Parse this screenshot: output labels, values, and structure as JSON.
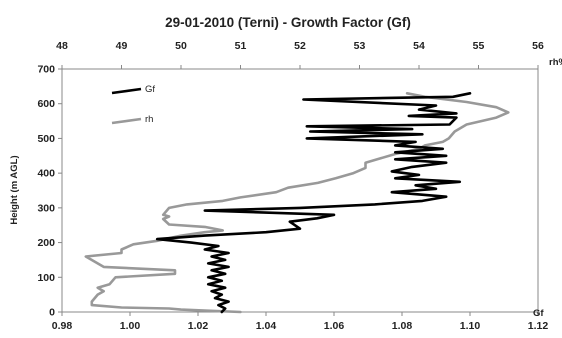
{
  "chart_data": {
    "type": "line",
    "title": "29-01-2010 (Terni) - Growth Factor (Gf)",
    "ylabel": "Height (m AGL)",
    "x_bottom_label": "Gf",
    "x_top_label": "rh%",
    "ylim": [
      0,
      700
    ],
    "yticks": [
      "0",
      "100",
      "200",
      "300",
      "400",
      "500",
      "600",
      "700"
    ],
    "x_bottom_lim": [
      0.98,
      1.12
    ],
    "x_bottom_ticks": [
      "0.98",
      "1.00",
      "1.02",
      "1.04",
      "1.06",
      "1.08",
      "1.10",
      "1.12"
    ],
    "x_top_lim": [
      48,
      56
    ],
    "x_top_ticks": [
      "48",
      "49",
      "50",
      "51",
      "52",
      "53",
      "54",
      "55",
      "56"
    ],
    "legend_position": "top-left",
    "series": [
      {
        "name": "Gf",
        "color": "#000000",
        "axis": "bottom",
        "points": [
          [
            1.027,
            0
          ],
          [
            1.028,
            10
          ],
          [
            1.026,
            20
          ],
          [
            1.029,
            30
          ],
          [
            1.025,
            40
          ],
          [
            1.027,
            50
          ],
          [
            1.024,
            60
          ],
          [
            1.028,
            70
          ],
          [
            1.023,
            80
          ],
          [
            1.027,
            90
          ],
          [
            1.023,
            100
          ],
          [
            1.028,
            110
          ],
          [
            1.024,
            120
          ],
          [
            1.029,
            130
          ],
          [
            1.023,
            140
          ],
          [
            1.028,
            150
          ],
          [
            1.024,
            160
          ],
          [
            1.029,
            170
          ],
          [
            1.022,
            180
          ],
          [
            1.026,
            190
          ],
          [
            1.018,
            200
          ],
          [
            1.008,
            210
          ],
          [
            1.022,
            220
          ],
          [
            1.04,
            230
          ],
          [
            1.05,
            240
          ],
          [
            1.047,
            260
          ],
          [
            1.055,
            270
          ],
          [
            1.06,
            280
          ],
          [
            1.022,
            292
          ],
          [
            1.05,
            300
          ],
          [
            1.072,
            310
          ],
          [
            1.086,
            320
          ],
          [
            1.093,
            332
          ],
          [
            1.077,
            345
          ],
          [
            1.09,
            355
          ],
          [
            1.084,
            365
          ],
          [
            1.097,
            375
          ],
          [
            1.078,
            385
          ],
          [
            1.085,
            395
          ],
          [
            1.077,
            405
          ],
          [
            1.083,
            418
          ],
          [
            1.093,
            430
          ],
          [
            1.078,
            440
          ],
          [
            1.093,
            450
          ],
          [
            1.078,
            460
          ],
          [
            1.092,
            470
          ],
          [
            1.078,
            480
          ],
          [
            1.084,
            490
          ],
          [
            1.052,
            500
          ],
          [
            1.086,
            512
          ],
          [
            1.053,
            520
          ],
          [
            1.083,
            527
          ],
          [
            1.052,
            535
          ],
          [
            1.094,
            540
          ],
          [
            1.096,
            560
          ],
          [
            1.082,
            565
          ],
          [
            1.096,
            572
          ],
          [
            1.085,
            583
          ],
          [
            1.09,
            595
          ],
          [
            1.051,
            612
          ],
          [
            1.095,
            620
          ],
          [
            1.1,
            630
          ]
        ]
      },
      {
        "name": "rh",
        "color": "#999999",
        "axis": "top",
        "points": [
          [
            51.0,
            0
          ],
          [
            50.0,
            7
          ],
          [
            49.8,
            10
          ],
          [
            49.0,
            13
          ],
          [
            48.5,
            20
          ],
          [
            48.5,
            30
          ],
          [
            48.6,
            50
          ],
          [
            48.7,
            60
          ],
          [
            48.6,
            70
          ],
          [
            48.8,
            80
          ],
          [
            48.9,
            100
          ],
          [
            49.9,
            110
          ],
          [
            49.9,
            120
          ],
          [
            48.7,
            130
          ],
          [
            48.4,
            160
          ],
          [
            49.0,
            170
          ],
          [
            49.0,
            180
          ],
          [
            49.2,
            195
          ],
          [
            49.6,
            205
          ],
          [
            50.0,
            220
          ],
          [
            50.4,
            230
          ],
          [
            50.7,
            235
          ],
          [
            50.4,
            245
          ],
          [
            49.8,
            252
          ],
          [
            49.7,
            268
          ],
          [
            49.8,
            275
          ],
          [
            49.7,
            280
          ],
          [
            49.8,
            300
          ],
          [
            50.1,
            310
          ],
          [
            50.7,
            320
          ],
          [
            51.0,
            330
          ],
          [
            51.6,
            345
          ],
          [
            51.8,
            358
          ],
          [
            52.3,
            372
          ],
          [
            52.6,
            385
          ],
          [
            52.9,
            400
          ],
          [
            53.1,
            415
          ],
          [
            53.1,
            430
          ],
          [
            53.3,
            440
          ],
          [
            53.6,
            455
          ],
          [
            54.0,
            470
          ],
          [
            54.1,
            480
          ],
          [
            54.4,
            490
          ],
          [
            54.5,
            500
          ],
          [
            54.6,
            520
          ],
          [
            54.8,
            540
          ],
          [
            55.3,
            560
          ],
          [
            55.5,
            575
          ],
          [
            55.3,
            590
          ],
          [
            54.8,
            605
          ],
          [
            54.1,
            620
          ],
          [
            53.8,
            630
          ]
        ]
      }
    ]
  }
}
